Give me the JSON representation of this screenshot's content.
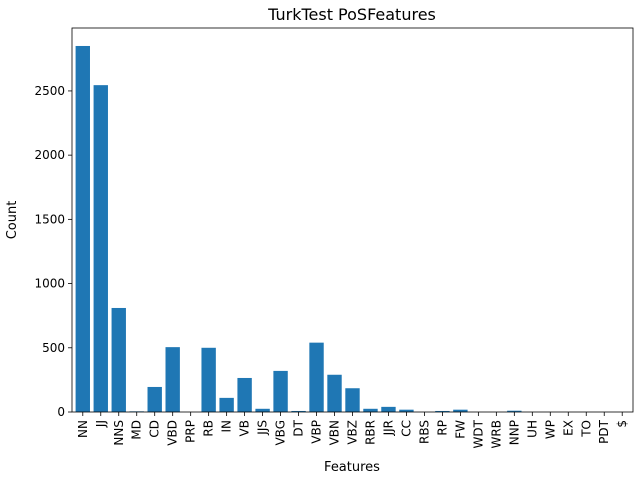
{
  "chart_data": {
    "type": "bar",
    "title": "TurkTest PoSFeatures",
    "xlabel": "Features",
    "ylabel": "Count",
    "ylim": [
      0,
      2990
    ],
    "yticks": [
      0,
      500,
      1000,
      1500,
      2000,
      2500
    ],
    "grid": false,
    "bar_color": "#1f77b4",
    "categories": [
      "NN",
      "JJ",
      "NNS",
      "MD",
      "CD",
      "VBD",
      "PRP",
      "RB",
      "IN",
      "VB",
      "JJS",
      "VBG",
      "DT",
      "VBP",
      "VBN",
      "VBZ",
      "RBR",
      "JJR",
      "CC",
      "RBS",
      "RP",
      "FW",
      "WDT",
      "WRB",
      "NNP",
      "UH",
      "WP",
      "EX",
      "TO",
      "PDT",
      "$"
    ],
    "values": [
      2850,
      2545,
      810,
      5,
      195,
      505,
      0,
      500,
      110,
      265,
      25,
      320,
      8,
      540,
      290,
      185,
      25,
      40,
      18,
      0,
      8,
      18,
      0,
      0,
      10,
      0,
      0,
      0,
      0,
      0,
      0
    ]
  }
}
